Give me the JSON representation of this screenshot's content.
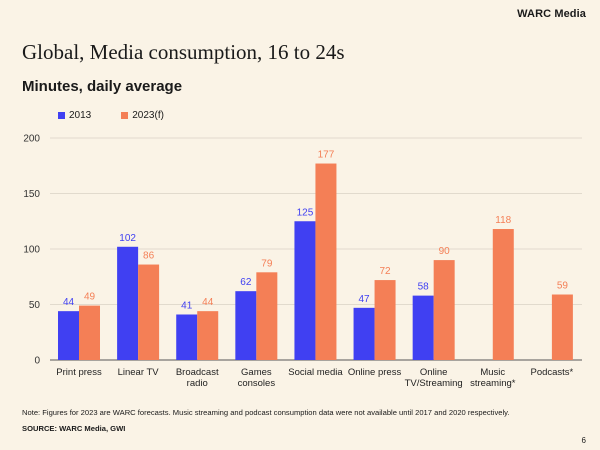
{
  "brand": "WARC Media",
  "page_number": "6",
  "note": "Note: Figures for 2023 are WARC forecasts. Music streaming and podcast consumption data were not available until 2017 and 2020 respectively.",
  "source": "SOURCE: WARC Media, GWI",
  "colors": {
    "s2013": "#4040f2",
    "s2023": "#f47f56",
    "grid": "#d9d2c4",
    "axis": "#555555"
  },
  "chart_data": {
    "type": "bar",
    "title": "Global, Media consumption, 16 to 24s",
    "subtitle": "Minutes, daily average",
    "ylim": [
      0,
      200
    ],
    "yticks": [
      0,
      50,
      100,
      150,
      200
    ],
    "grid": true,
    "legend_position": "top-left",
    "categories": [
      [
        "Print press"
      ],
      [
        "Linear TV"
      ],
      [
        "Broadcast",
        "radio"
      ],
      [
        "Games",
        "consoles"
      ],
      [
        "Social media"
      ],
      [
        "Online press"
      ],
      [
        "Online",
        "TV/Streaming"
      ],
      [
        "Music",
        "streaming*"
      ],
      [
        "Podcasts*"
      ]
    ],
    "series": [
      {
        "name": "2013",
        "values": [
          44,
          102,
          41,
          62,
          125,
          47,
          58,
          null,
          null
        ]
      },
      {
        "name": "2023(f)",
        "values": [
          49,
          86,
          44,
          79,
          177,
          72,
          90,
          118,
          59
        ]
      }
    ]
  }
}
